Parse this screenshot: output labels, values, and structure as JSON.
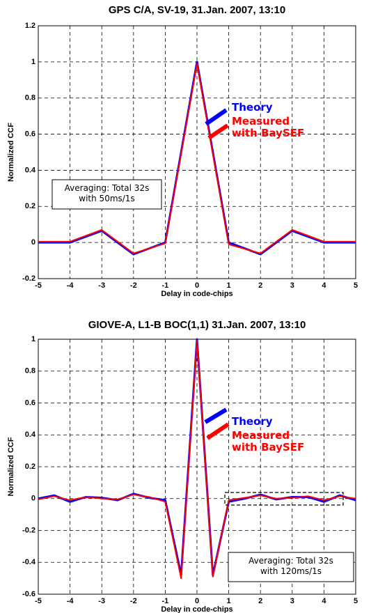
{
  "chart_data": [
    {
      "type": "line",
      "title": "GPS C/A, SV-19,  31.Jan. 2007, 13:10",
      "x_label": "Delay in code-chips",
      "y_label": "Normalized CCF",
      "x": [
        -5,
        -4,
        -3,
        -2,
        -1,
        0,
        1,
        2,
        3,
        4,
        5
      ],
      "series": [
        {
          "name": "Theory",
          "color": "#0000ff",
          "values": [
            0,
            0,
            0.065,
            -0.065,
            0,
            1,
            0,
            -0.065,
            0.065,
            0,
            0
          ]
        },
        {
          "name": "Measured with BaySEF",
          "color": "#ff0000",
          "values": [
            0.005,
            0.005,
            0.07,
            -0.06,
            -0.005,
            0.99,
            -0.01,
            -0.06,
            0.07,
            0.005,
            0.005
          ]
        }
      ],
      "xlim": [
        -5,
        5
      ],
      "xticks": [
        -5,
        -4,
        -3,
        -2,
        -1,
        0,
        1,
        2,
        3,
        4,
        5
      ],
      "ylim": [
        -0.2,
        1.2
      ],
      "yticks": [
        -0.2,
        0,
        0.2,
        0.4,
        0.6,
        0.8,
        1,
        1.2
      ],
      "grid": true,
      "annotation": [
        "Averaging: Total 32s",
        "with 50ms/1s"
      ]
    },
    {
      "type": "line",
      "title": "GIOVE-A, L1-B BOC(1,1)  31.Jan. 2007, 13:10",
      "x_label": "Delay in code-chips",
      "y_label": "Normalized CCF",
      "x": [
        -5,
        -4.5,
        -4,
        -3.5,
        -3,
        -2.5,
        -2,
        -1.5,
        -1,
        -0.5,
        0,
        0.5,
        1,
        1.5,
        2,
        2.5,
        3,
        3.5,
        4,
        4.5,
        5
      ],
      "series": [
        {
          "name": "Theory",
          "color": "#0000ff",
          "values": [
            0,
            0.02,
            -0.02,
            0.01,
            0.005,
            -0.01,
            0.03,
            0.005,
            -0.01,
            -0.48,
            1,
            -0.48,
            -0.02,
            0,
            0.025,
            -0.005,
            0.01,
            0.01,
            -0.02,
            0.02,
            -0.01
          ]
        },
        {
          "name": "Measured with BaySEF",
          "color": "#ff0000",
          "values": [
            -0.005,
            0.015,
            -0.01,
            0.01,
            0,
            -0.005,
            0.025,
            0.01,
            -0.02,
            -0.5,
            0.99,
            -0.49,
            -0.01,
            0.005,
            0.02,
            0,
            0.005,
            0.015,
            -0.01,
            0.015,
            0
          ]
        }
      ],
      "xlim": [
        -5,
        5
      ],
      "xticks": [
        -5,
        -4,
        -3,
        -2,
        -1,
        0,
        1,
        2,
        3,
        4,
        5
      ],
      "ylim": [
        -0.6,
        1
      ],
      "yticks": [
        -0.6,
        -0.4,
        -0.2,
        0,
        0.2,
        0.4,
        0.6,
        0.8,
        1
      ],
      "grid": true,
      "annotation": [
        "Averaging: Total 32s",
        "with 120ms/1s"
      ]
    }
  ]
}
